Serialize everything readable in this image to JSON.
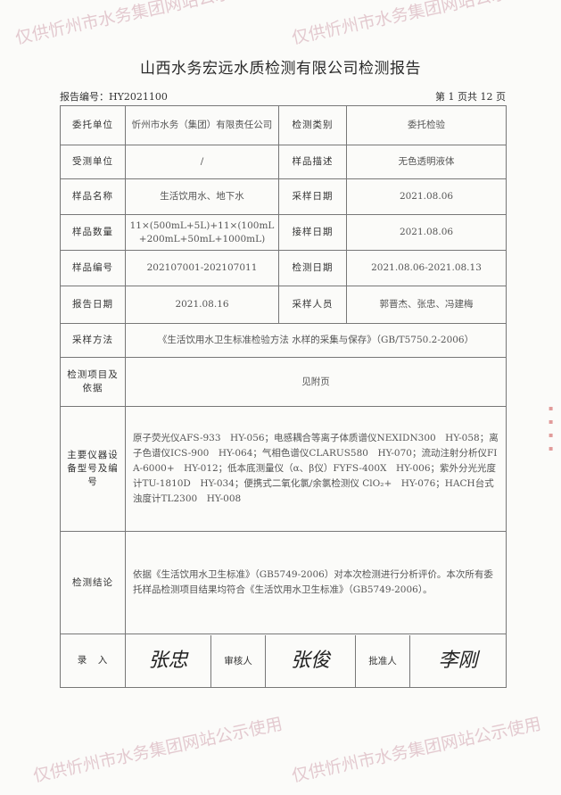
{
  "title": "山西水务宏远水质检测有限公司检测报告",
  "report_no": "报告编号：HY2021100",
  "page_info": "第 1 页共 12 页",
  "rows": [
    {
      "l1": "委托单位",
      "v1": "忻州市水务（集团）有限责任公司",
      "l2": "检测类别",
      "v2": "委托检验"
    },
    {
      "l1": "受测单位",
      "v1": "/",
      "l2": "样品描述",
      "v2": "无色透明液体"
    },
    {
      "l1": "样品名称",
      "v1": "生活饮用水、地下水",
      "l2": "采样日期",
      "v2": "2021.08.06"
    },
    {
      "l1": "样品数量",
      "v1": "11×(500mL+5L)+11×(100mL+200mL+50mL+1000mL)",
      "l2": "接样日期",
      "v2": "2021.08.06"
    },
    {
      "l1": "样品编号",
      "v1": "202107001-202107011",
      "l2": "检测日期",
      "v2": "2021.08.06-2021.08.13"
    },
    {
      "l1": "报告日期",
      "v1": "2021.08.16",
      "l2": "采样人员",
      "v2": "郭晋杰、张忠、冯建梅"
    }
  ],
  "sampling_method": {
    "label": "采样方法",
    "value": "《生活饮用水卫生标准检验方法 水样的采集与保存》（GB/T5750.2-2006）"
  },
  "test_items": {
    "label": "检测项目及依据",
    "value": "见附页"
  },
  "instruments": {
    "label": "主要仪器设备型号及编号",
    "value": "原子荧光仪AFS-933　HY-056；电感耦合等离子体质谱仪NEXIDN300　HY-058；离子色谱仪ICS-900　HY-064；气相色谱仪CLARUS580　HY-070；流动注射分析仪FIA-6000+　HY-012；低本底测量仪（α、β仪）FYFS-400X　HY-006；紫外分光光度计TU-1810D　HY-034；便携式二氧化氯/余氯检测仪 ClO₂+　HY-076；HACH台式浊度计TL2300　HY-008"
  },
  "conclusion": {
    "label": "检测结论",
    "value": "依据《生活饮用水卫生标准》（GB5749-2006）对本次检测进行分析评价。本次所有委托样品检测项目结果均符合《生活饮用水卫生标准》（GB5749-2006）。"
  },
  "signatures": {
    "entry_label": "录　入",
    "entry_sig": "张忠",
    "review_label": "审核人",
    "review_sig": "张俊",
    "approve_label": "批准人",
    "approve_sig": "李刚"
  },
  "watermark": "仅供忻州市水务集团网站公示使用"
}
